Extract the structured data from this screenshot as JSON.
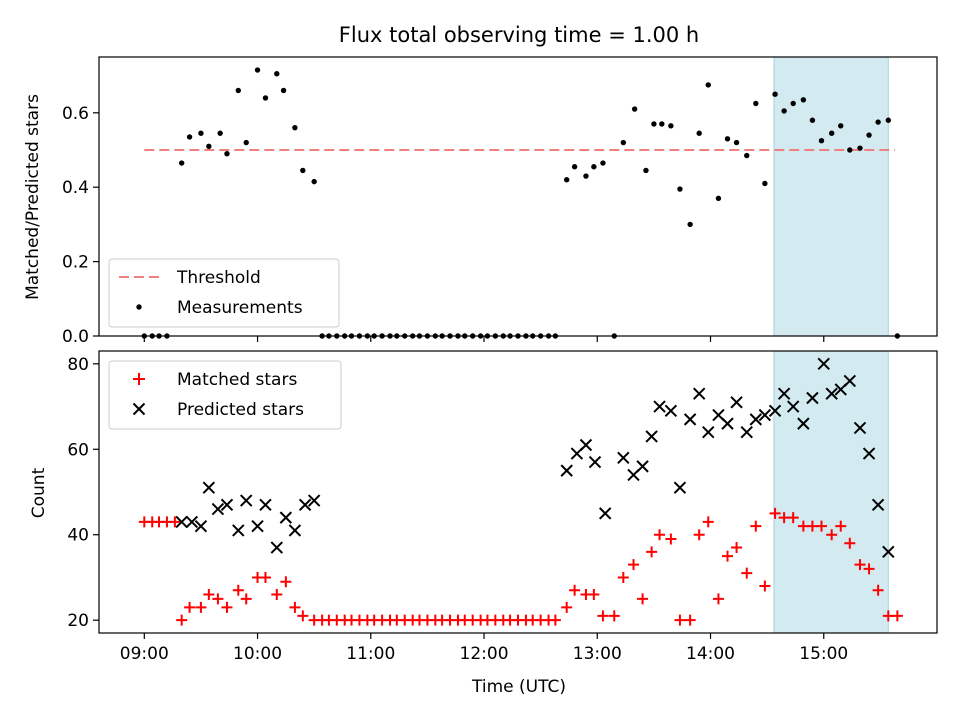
{
  "chart_data": {
    "type": "scatter",
    "title": "Flux total observing time = 1.00 h",
    "xlabel": "Time (UTC)",
    "x_ticks": [
      "09:00",
      "10:00",
      "11:00",
      "12:00",
      "13:00",
      "14:00",
      "15:00"
    ],
    "x_range_hours": [
      8.6,
      16.0
    ],
    "highlight_span_hours": [
      14.56,
      15.57
    ],
    "colors": {
      "threshold": "#f08080",
      "measurements": "#000000",
      "matched": "#ff0000",
      "predicted": "#000000",
      "highlight": "#d2eaf0"
    },
    "top": {
      "ylabel": "Matched/Predicted stars",
      "ylim": [
        0,
        0.75
      ],
      "y_ticks": [
        "0.0",
        "0.2",
        "0.4",
        "0.6"
      ],
      "threshold": {
        "name": "Threshold",
        "value": 0.5,
        "x_range_hours": [
          9.0,
          15.63
        ]
      },
      "measurements_name": "Measurements",
      "legend_position": "lower-left",
      "points": [
        [
          9.0,
          0.0
        ],
        [
          9.07,
          0.0
        ],
        [
          9.13,
          0.0
        ],
        [
          9.2,
          0.0
        ],
        [
          9.33,
          0.465
        ],
        [
          9.4,
          0.535
        ],
        [
          9.5,
          0.545
        ],
        [
          9.57,
          0.51
        ],
        [
          9.67,
          0.545
        ],
        [
          9.73,
          0.49
        ],
        [
          9.83,
          0.66
        ],
        [
          9.9,
          0.52
        ],
        [
          10.0,
          0.715
        ],
        [
          10.07,
          0.64
        ],
        [
          10.17,
          0.705
        ],
        [
          10.23,
          0.66
        ],
        [
          10.33,
          0.56
        ],
        [
          10.4,
          0.445
        ],
        [
          10.5,
          0.415
        ],
        [
          10.57,
          0.0
        ],
        [
          10.63,
          0.0
        ],
        [
          10.7,
          0.0
        ],
        [
          10.77,
          0.0
        ],
        [
          10.83,
          0.0
        ],
        [
          10.9,
          0.0
        ],
        [
          10.97,
          0.0
        ],
        [
          11.03,
          0.0
        ],
        [
          11.1,
          0.0
        ],
        [
          11.17,
          0.0
        ],
        [
          11.23,
          0.0
        ],
        [
          11.3,
          0.0
        ],
        [
          11.37,
          0.0
        ],
        [
          11.43,
          0.0
        ],
        [
          11.5,
          0.0
        ],
        [
          11.57,
          0.0
        ],
        [
          11.63,
          0.0
        ],
        [
          11.7,
          0.0
        ],
        [
          11.77,
          0.0
        ],
        [
          11.83,
          0.0
        ],
        [
          11.9,
          0.0
        ],
        [
          11.97,
          0.0
        ],
        [
          12.03,
          0.0
        ],
        [
          12.1,
          0.0
        ],
        [
          12.17,
          0.0
        ],
        [
          12.23,
          0.0
        ],
        [
          12.3,
          0.0
        ],
        [
          12.37,
          0.0
        ],
        [
          12.43,
          0.0
        ],
        [
          12.5,
          0.0
        ],
        [
          12.57,
          0.0
        ],
        [
          12.63,
          0.0
        ],
        [
          12.73,
          0.42
        ],
        [
          12.8,
          0.455
        ],
        [
          12.9,
          0.43
        ],
        [
          12.97,
          0.455
        ],
        [
          13.05,
          0.465
        ],
        [
          13.15,
          0.0
        ],
        [
          13.23,
          0.52
        ],
        [
          13.33,
          0.61
        ],
        [
          13.43,
          0.445
        ],
        [
          13.5,
          0.57
        ],
        [
          13.57,
          0.57
        ],
        [
          13.65,
          0.565
        ],
        [
          13.73,
          0.395
        ],
        [
          13.82,
          0.3
        ],
        [
          13.9,
          0.545
        ],
        [
          13.98,
          0.675
        ],
        [
          14.07,
          0.37
        ],
        [
          14.15,
          0.53
        ],
        [
          14.23,
          0.52
        ],
        [
          14.32,
          0.485
        ],
        [
          14.4,
          0.625
        ],
        [
          14.48,
          0.41
        ],
        [
          14.57,
          0.65
        ],
        [
          14.65,
          0.605
        ],
        [
          14.73,
          0.625
        ],
        [
          14.82,
          0.635
        ],
        [
          14.9,
          0.58
        ],
        [
          14.98,
          0.525
        ],
        [
          15.07,
          0.545
        ],
        [
          15.15,
          0.565
        ],
        [
          15.23,
          0.5
        ],
        [
          15.32,
          0.505
        ],
        [
          15.4,
          0.54
        ],
        [
          15.48,
          0.575
        ],
        [
          15.57,
          0.58
        ],
        [
          15.65,
          0.0
        ]
      ]
    },
    "bottom": {
      "ylabel": "Count",
      "ylim": [
        17,
        83
      ],
      "y_ticks": [
        "20",
        "40",
        "60",
        "80"
      ],
      "legend_position": "upper-left",
      "series": [
        {
          "name": "Matched stars",
          "points": [
            [
              9.0,
              43
            ],
            [
              9.07,
              43
            ],
            [
              9.13,
              43
            ],
            [
              9.2,
              43
            ],
            [
              9.27,
              43
            ],
            [
              9.33,
              20
            ],
            [
              9.4,
              23
            ],
            [
              9.5,
              23
            ],
            [
              9.57,
              26
            ],
            [
              9.65,
              25
            ],
            [
              9.73,
              23
            ],
            [
              9.83,
              27
            ],
            [
              9.9,
              25
            ],
            [
              10.0,
              30
            ],
            [
              10.07,
              30
            ],
            [
              10.17,
              26
            ],
            [
              10.25,
              29
            ],
            [
              10.33,
              23
            ],
            [
              10.4,
              21
            ],
            [
              10.5,
              20
            ],
            [
              10.57,
              20
            ],
            [
              10.63,
              20
            ],
            [
              10.7,
              20
            ],
            [
              10.77,
              20
            ],
            [
              10.83,
              20
            ],
            [
              10.9,
              20
            ],
            [
              10.97,
              20
            ],
            [
              11.03,
              20
            ],
            [
              11.1,
              20
            ],
            [
              11.17,
              20
            ],
            [
              11.23,
              20
            ],
            [
              11.3,
              20
            ],
            [
              11.37,
              20
            ],
            [
              11.43,
              20
            ],
            [
              11.5,
              20
            ],
            [
              11.57,
              20
            ],
            [
              11.63,
              20
            ],
            [
              11.7,
              20
            ],
            [
              11.77,
              20
            ],
            [
              11.83,
              20
            ],
            [
              11.9,
              20
            ],
            [
              11.97,
              20
            ],
            [
              12.03,
              20
            ],
            [
              12.1,
              20
            ],
            [
              12.17,
              20
            ],
            [
              12.23,
              20
            ],
            [
              12.3,
              20
            ],
            [
              12.37,
              20
            ],
            [
              12.43,
              20
            ],
            [
              12.5,
              20
            ],
            [
              12.57,
              20
            ],
            [
              12.63,
              20
            ],
            [
              12.73,
              23
            ],
            [
              12.8,
              27
            ],
            [
              12.9,
              26
            ],
            [
              12.97,
              26
            ],
            [
              13.05,
              21
            ],
            [
              13.15,
              21
            ],
            [
              13.23,
              30
            ],
            [
              13.32,
              33
            ],
            [
              13.4,
              25
            ],
            [
              13.48,
              36
            ],
            [
              13.55,
              40
            ],
            [
              13.65,
              39
            ],
            [
              13.73,
              20
            ],
            [
              13.82,
              20
            ],
            [
              13.9,
              40
            ],
            [
              13.98,
              43
            ],
            [
              14.07,
              25
            ],
            [
              14.15,
              35
            ],
            [
              14.23,
              37
            ],
            [
              14.32,
              31
            ],
            [
              14.4,
              42
            ],
            [
              14.48,
              28
            ],
            [
              14.57,
              45
            ],
            [
              14.65,
              44
            ],
            [
              14.73,
              44
            ],
            [
              14.82,
              42
            ],
            [
              14.9,
              42
            ],
            [
              14.98,
              42
            ],
            [
              15.07,
              40
            ],
            [
              15.15,
              42
            ],
            [
              15.23,
              38
            ],
            [
              15.32,
              33
            ],
            [
              15.4,
              32
            ],
            [
              15.48,
              27
            ],
            [
              15.57,
              21
            ],
            [
              15.65,
              21
            ]
          ]
        },
        {
          "name": "Predicted stars",
          "points": [
            [
              9.33,
              43
            ],
            [
              9.42,
              43
            ],
            [
              9.5,
              42
            ],
            [
              9.57,
              51
            ],
            [
              9.65,
              46
            ],
            [
              9.73,
              47
            ],
            [
              9.83,
              41
            ],
            [
              9.9,
              48
            ],
            [
              10.0,
              42
            ],
            [
              10.07,
              47
            ],
            [
              10.17,
              37
            ],
            [
              10.25,
              44
            ],
            [
              10.33,
              41
            ],
            [
              10.42,
              47
            ],
            [
              10.5,
              48
            ],
            [
              12.73,
              55
            ],
            [
              12.82,
              59
            ],
            [
              12.9,
              61
            ],
            [
              12.98,
              57
            ],
            [
              13.07,
              45
            ],
            [
              13.23,
              58
            ],
            [
              13.32,
              54
            ],
            [
              13.4,
              56
            ],
            [
              13.48,
              63
            ],
            [
              13.55,
              70
            ],
            [
              13.65,
              69
            ],
            [
              13.73,
              51
            ],
            [
              13.82,
              67
            ],
            [
              13.9,
              73
            ],
            [
              13.98,
              64
            ],
            [
              14.07,
              68
            ],
            [
              14.15,
              66
            ],
            [
              14.23,
              71
            ],
            [
              14.32,
              64
            ],
            [
              14.4,
              67
            ],
            [
              14.48,
              68
            ],
            [
              14.57,
              69
            ],
            [
              14.65,
              73
            ],
            [
              14.73,
              70
            ],
            [
              14.82,
              66
            ],
            [
              14.9,
              72
            ],
            [
              15.0,
              80
            ],
            [
              15.07,
              73
            ],
            [
              15.15,
              74
            ],
            [
              15.23,
              76
            ],
            [
              15.32,
              65
            ],
            [
              15.4,
              59
            ],
            [
              15.48,
              47
            ],
            [
              15.57,
              36
            ]
          ]
        }
      ]
    }
  }
}
